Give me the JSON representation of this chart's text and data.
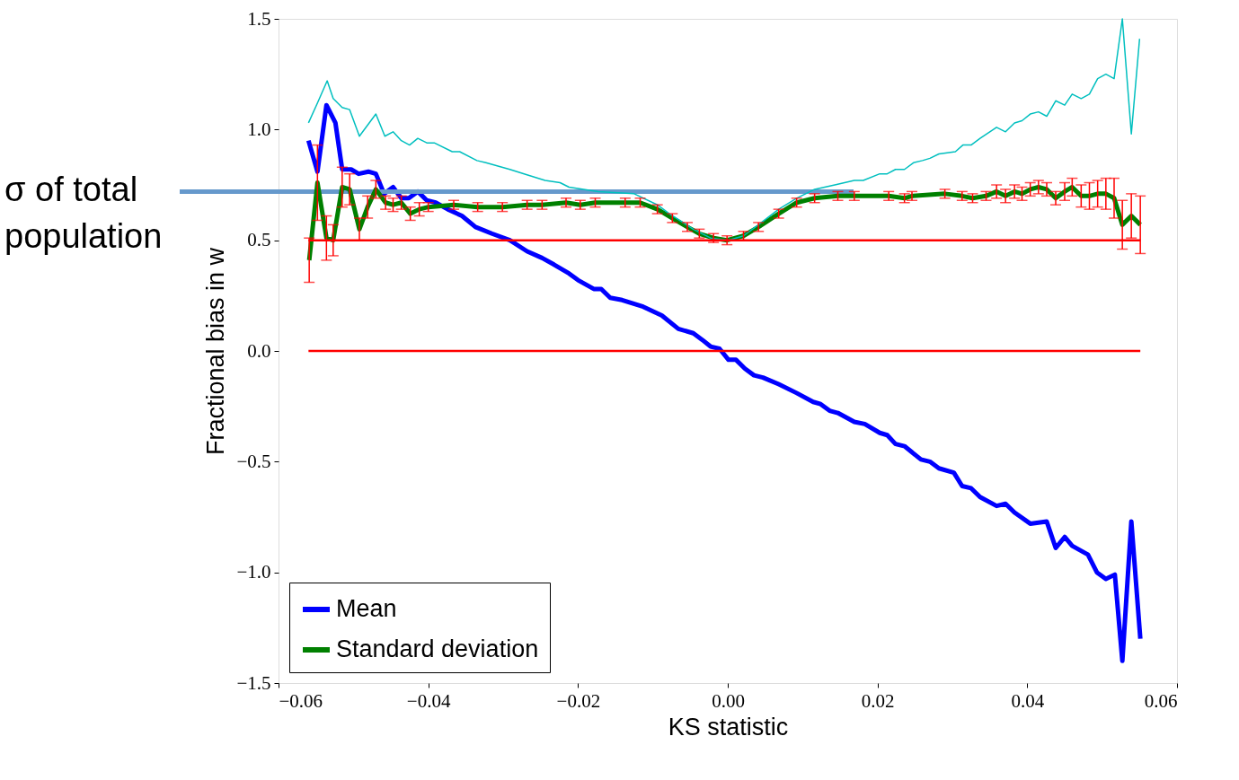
{
  "chart_data": {
    "type": "line",
    "xlabel": "KS statistic",
    "ylabel": "Fractional bias in w",
    "xlim": [
      -0.06,
      0.06
    ],
    "ylim": [
      -1.5,
      1.5
    ],
    "xticks": [
      {
        "value": -0.06,
        "label": "−0.06"
      },
      {
        "value": -0.04,
        "label": "−0.04"
      },
      {
        "value": -0.02,
        "label": "−0.02"
      },
      {
        "value": 0,
        "label": "0.00"
      },
      {
        "value": 0.02,
        "label": "0.02"
      },
      {
        "value": 0.04,
        "label": "0.04"
      },
      {
        "value": 0.06,
        "label": "0.06"
      }
    ],
    "yticks": [
      {
        "value": -1.5,
        "label": "−1.5"
      },
      {
        "value": -1,
        "label": "−1.0"
      },
      {
        "value": -0.5,
        "label": "−0.5"
      },
      {
        "value": 0,
        "label": "0.0"
      },
      0.5,
      {
        "value": 1,
        "label": "1.0"
      },
      1.5
    ],
    "legend": "bottom left",
    "series": [
      {
        "name": "Mean",
        "color": "#0000ff",
        "x": [
          -0.056,
          -0.0548,
          -0.0536,
          -0.0524,
          -0.0515,
          -0.0503,
          -0.0493,
          -0.048,
          -0.047,
          -0.0459,
          -0.0447,
          -0.0436,
          -0.0426,
          -0.0414,
          -0.0402,
          -0.039,
          -0.0374,
          -0.0355,
          -0.0337,
          -0.0315,
          -0.0291,
          -0.0268,
          -0.0248,
          -0.0232,
          -0.0212,
          -0.02,
          -0.0179,
          -0.0169,
          -0.0157,
          -0.0141,
          -0.0113,
          -0.0088,
          -0.0066,
          -0.0046,
          -0.0034,
          -0.0023,
          -0.0011,
          0.0001,
          0.0011,
          0.0023,
          0.0035,
          0.0047,
          0.0068,
          0.0092,
          0.0114,
          0.0124,
          0.0136,
          0.0147,
          0.0169,
          0.0183,
          0.0203,
          0.0213,
          0.0224,
          0.0236,
          0.0258,
          0.027,
          0.0282,
          0.0302,
          0.0313,
          0.0325,
          0.0337,
          0.0359,
          0.0371,
          0.0383,
          0.0404,
          0.0426,
          0.0438,
          0.045,
          0.046,
          0.0481,
          0.0493,
          0.0505,
          0.0517,
          0.0527,
          0.0539,
          0.0551
        ],
        "values": [
          0.95,
          0.81,
          1.11,
          1.03,
          0.82,
          0.82,
          0.8,
          0.81,
          0.8,
          0.71,
          0.74,
          0.69,
          0.69,
          0.72,
          0.68,
          0.67,
          0.64,
          0.61,
          0.56,
          0.53,
          0.5,
          0.45,
          0.42,
          0.39,
          0.35,
          0.32,
          0.28,
          0.28,
          0.24,
          0.23,
          0.2,
          0.16,
          0.1,
          0.08,
          0.05,
          0.02,
          0.01,
          -0.04,
          -0.04,
          -0.08,
          -0.11,
          -0.12,
          -0.15,
          -0.19,
          -0.23,
          -0.24,
          -0.27,
          -0.28,
          -0.32,
          -0.33,
          -0.37,
          -0.38,
          -0.42,
          -0.43,
          -0.49,
          -0.5,
          -0.53,
          -0.55,
          -0.61,
          -0.62,
          -0.66,
          -0.7,
          -0.69,
          -0.73,
          -0.78,
          -0.77,
          -0.89,
          -0.84,
          -0.88,
          -0.92,
          -1.0,
          -1.03,
          -1.01,
          -1.4,
          -0.77,
          -1.3
        ]
      },
      {
        "name": "Standard deviation",
        "color": "#008000",
        "x": [
          -0.0559,
          -0.0548,
          -0.0536,
          -0.0527,
          -0.0515,
          -0.0505,
          -0.0492,
          -0.0481,
          -0.047,
          -0.0457,
          -0.0447,
          -0.0436,
          -0.0424,
          -0.0412,
          -0.04,
          -0.0366,
          -0.0334,
          -0.0301,
          -0.0268,
          -0.0248,
          -0.0216,
          -0.0197,
          -0.0177,
          -0.0137,
          -0.0117,
          -0.0094,
          -0.0074,
          -0.0054,
          -0.0038,
          -0.0019,
          -0.0001,
          0.0021,
          0.0041,
          0.0068,
          0.0092,
          0.0116,
          0.0147,
          0.0169,
          0.0215,
          0.0236,
          0.0246,
          0.029,
          0.0313,
          0.0327,
          0.0345,
          0.0359,
          0.0371,
          0.0383,
          0.0393,
          0.0404,
          0.0415,
          0.0426,
          0.0438,
          0.045,
          0.046,
          0.0472,
          0.0483,
          0.0494,
          0.0505,
          0.0516,
          0.0527,
          0.0539,
          0.0551
        ],
        "values": [
          0.41,
          0.76,
          0.51,
          0.5,
          0.74,
          0.73,
          0.55,
          0.65,
          0.73,
          0.67,
          0.66,
          0.67,
          0.62,
          0.64,
          0.65,
          0.66,
          0.65,
          0.65,
          0.66,
          0.66,
          0.67,
          0.66,
          0.67,
          0.67,
          0.67,
          0.64,
          0.6,
          0.56,
          0.53,
          0.51,
          0.5,
          0.52,
          0.56,
          0.62,
          0.67,
          0.69,
          0.7,
          0.7,
          0.7,
          0.69,
          0.7,
          0.71,
          0.7,
          0.69,
          0.7,
          0.72,
          0.7,
          0.72,
          0.71,
          0.73,
          0.74,
          0.73,
          0.69,
          0.72,
          0.74,
          0.7,
          0.7,
          0.71,
          0.71,
          0.69,
          0.57,
          0.61,
          0.57
        ],
        "errors": [
          0.1,
          0.17,
          0.1,
          0.07,
          0.09,
          0.07,
          0.05,
          0.05,
          0.04,
          0.03,
          0.03,
          0.03,
          0.03,
          0.03,
          0.02,
          0.02,
          0.02,
          0.02,
          0.02,
          0.02,
          0.02,
          0.02,
          0.02,
          0.02,
          0.02,
          0.02,
          0.02,
          0.02,
          0.02,
          0.02,
          0.02,
          0.02,
          0.02,
          0.02,
          0.02,
          0.02,
          0.02,
          0.02,
          0.02,
          0.02,
          0.02,
          0.02,
          0.02,
          0.02,
          0.02,
          0.03,
          0.03,
          0.03,
          0.03,
          0.03,
          0.03,
          0.03,
          0.03,
          0.04,
          0.04,
          0.05,
          0.06,
          0.06,
          0.07,
          0.09,
          0.11,
          0.1,
          0.13
        ]
      },
      {
        "color": "#00bfbf",
        "x": [
          -0.056,
          -0.0548,
          -0.0535,
          -0.0527,
          -0.0515,
          -0.0505,
          -0.0492,
          -0.047,
          -0.0458,
          -0.0447,
          -0.0436,
          -0.0425,
          -0.0414,
          -0.0402,
          -0.0392,
          -0.0368,
          -0.0358,
          -0.0335,
          -0.0323,
          -0.0291,
          -0.0272,
          -0.0244,
          -0.0224,
          -0.0212,
          -0.0173,
          -0.0125,
          -0.0094,
          -0.0078,
          -0.0046,
          -0.0023,
          0.0001,
          0.0021,
          0.0041,
          0.0068,
          0.0092,
          0.0116,
          0.0143,
          0.0169,
          0.0181,
          0.0203,
          0.0213,
          0.0224,
          0.0236,
          0.0248,
          0.026,
          0.027,
          0.0282,
          0.0304,
          0.0314,
          0.0325,
          0.0337,
          0.0359,
          0.0371,
          0.0383,
          0.0393,
          0.0404,
          0.0415,
          0.0426,
          0.0438,
          0.045,
          0.046,
          0.0472,
          0.0483,
          0.0494,
          0.0505,
          0.0516,
          0.0527,
          0.0539,
          0.055
        ],
        "values": [
          1.03,
          1.12,
          1.22,
          1.14,
          1.1,
          1.09,
          0.97,
          1.07,
          0.97,
          0.99,
          0.95,
          0.93,
          0.96,
          0.94,
          0.94,
          0.9,
          0.9,
          0.86,
          0.85,
          0.82,
          0.8,
          0.77,
          0.76,
          0.74,
          0.72,
          0.71,
          0.66,
          0.62,
          0.55,
          0.51,
          0.5,
          0.52,
          0.57,
          0.64,
          0.69,
          0.73,
          0.75,
          0.77,
          0.77,
          0.8,
          0.8,
          0.82,
          0.82,
          0.85,
          0.86,
          0.87,
          0.89,
          0.9,
          0.93,
          0.93,
          0.96,
          1.01,
          0.99,
          1.03,
          1.04,
          1.07,
          1.08,
          1.06,
          1.13,
          1.11,
          1.16,
          1.14,
          1.16,
          1.23,
          1.25,
          1.23,
          1.5,
          0.98,
          1.41
        ]
      }
    ],
    "ref_lines": [
      {
        "axis": "y",
        "value": 0.5,
        "color": "#ff0000"
      },
      {
        "axis": "y",
        "value": 0,
        "color": "#ff0000"
      },
      {
        "axis": "y",
        "value": 0.72,
        "label": "σ of total population",
        "color": "#6699cc"
      }
    ]
  }
}
